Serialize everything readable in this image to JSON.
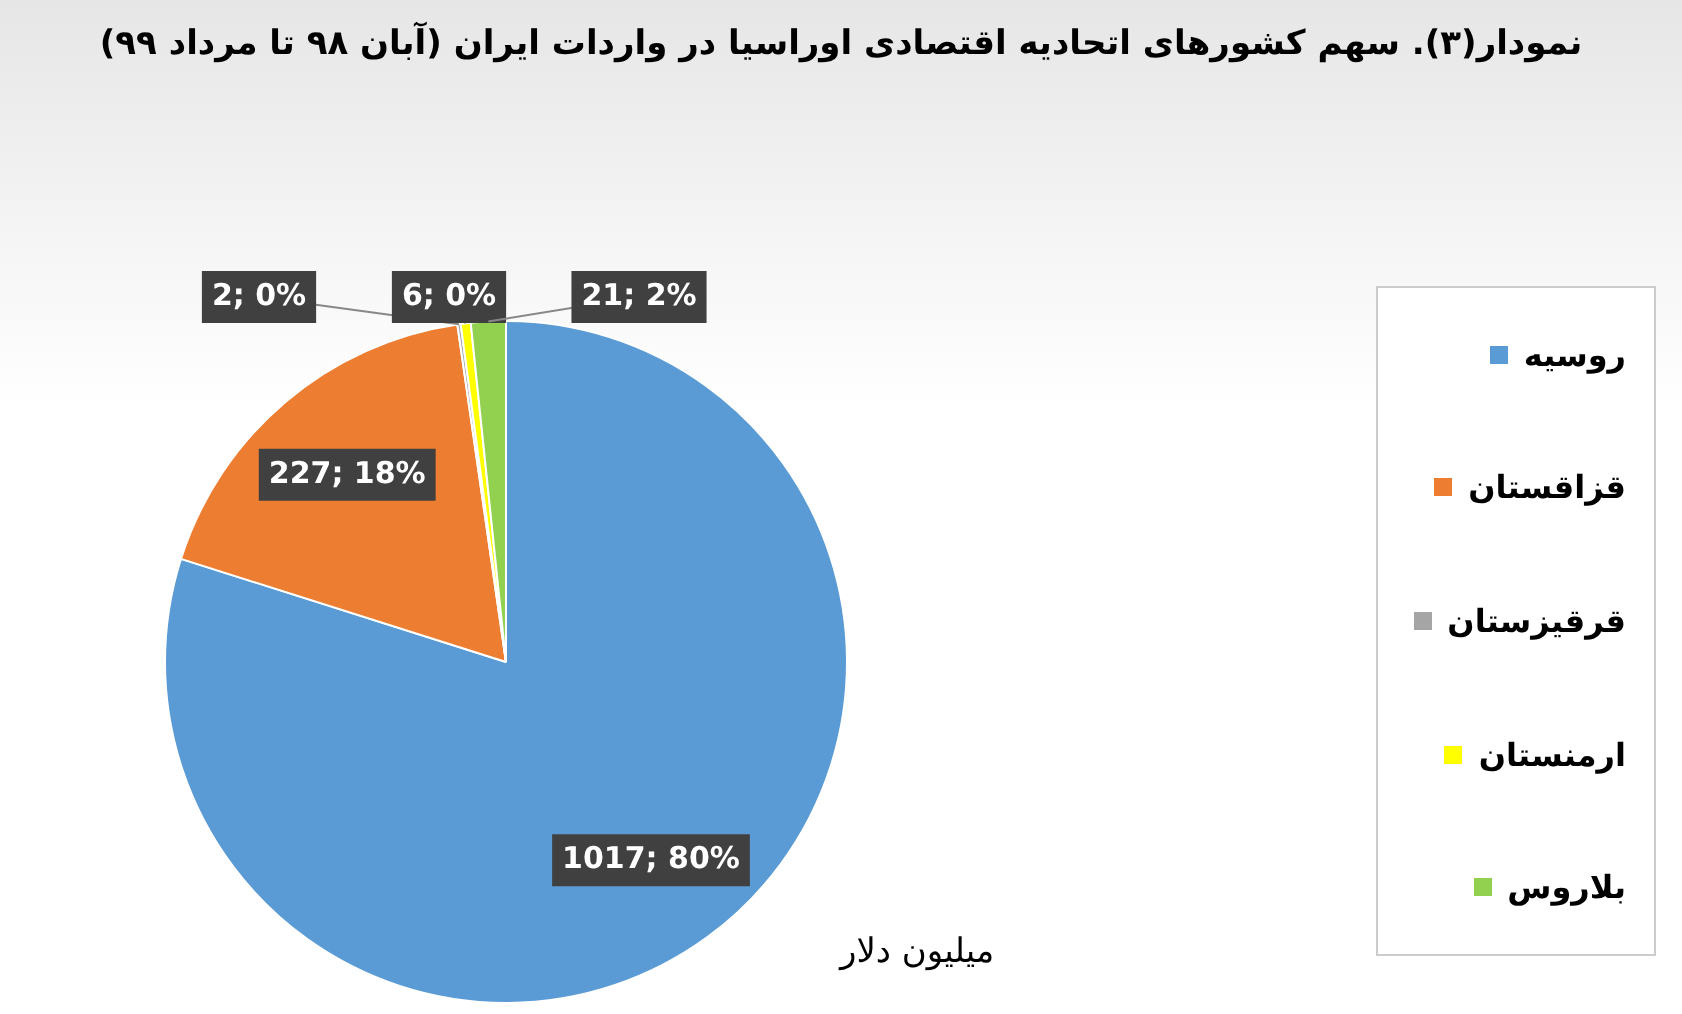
{
  "chart_data": {
    "type": "pie",
    "title": "نمودار(۳). سهم کشورهای اتحادیه اقتصادی اوراسیا در واردات ایران (آبان ۹۸ تا مرداد ۹۹)",
    "categories": [
      "روسیه",
      "قزاقستان",
      "قرقیزستان",
      "ارمنستان",
      "بلاروس"
    ],
    "values": [
      1017,
      227,
      2,
      6,
      21
    ],
    "colors": [
      "#5b9bd5",
      "#ed7d31",
      "#a5a5a5",
      "#ffff00",
      "#92d050"
    ],
    "value_labels": [
      "1017; 80%",
      "227; 18%",
      "2; 0%",
      "6; 0%",
      "21; 2%"
    ],
    "annotations": [
      "میلیون دلار"
    ],
    "legend": "right"
  }
}
